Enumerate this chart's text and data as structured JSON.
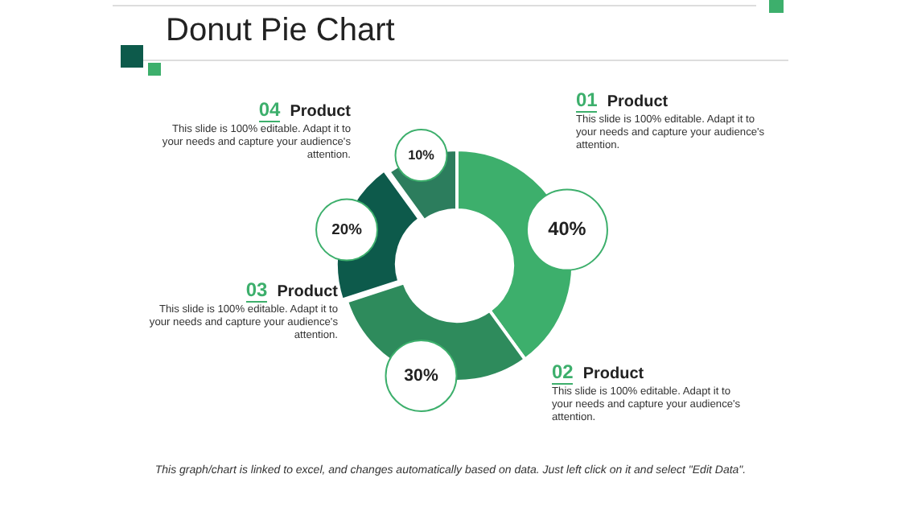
{
  "chart_data": {
    "type": "donut",
    "title": "Donut Pie Chart",
    "categories": [
      "01 Product",
      "02 Product",
      "03 Product",
      "04 Product"
    ],
    "values": [
      40,
      30,
      20,
      10
    ],
    "colors": [
      "#3daf6c",
      "#2e8b5c",
      "#0d5a4b",
      "#2c7d5d"
    ],
    "value_labels": [
      "40%",
      "30%",
      "20%",
      "10%"
    ],
    "legend": false,
    "annotations": [
      "This slide is 100% editable. Adapt it to your needs and capture your audience's attention.",
      "This slide is 100% editable. Adapt it to your needs and capture your audience's attention.",
      "This slide is 100% editable. Adapt it to your needs and capture your audience's attention.",
      "This slide is 100% editable. Adapt it to your needs and capture your audience's attention.",
      "This graph/chart is linked to excel, and changes automatically based on data. Just left click on it and select \"Edit Data\"."
    ]
  }
}
